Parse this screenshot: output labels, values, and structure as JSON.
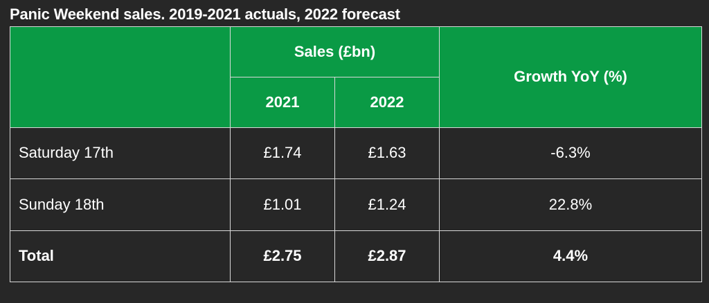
{
  "title": "Panic Weekend sales. 2019-2021 actuals, 2022 forecast",
  "colors": {
    "header_green": "#0a9a45",
    "background": "#272727",
    "border": "#d9d9d9"
  },
  "header": {
    "sales_group": "Sales (£bn)",
    "col_2021": "2021",
    "col_2022": "2022",
    "growth": "Growth YoY (%)"
  },
  "chart_data": {
    "type": "table",
    "title": "Panic Weekend sales. 2019-2021 actuals, 2022 forecast",
    "columns": [
      "",
      "2021",
      "2022",
      "Growth YoY (%)"
    ],
    "column_group": "Sales (£bn)",
    "rows": [
      {
        "label": "Saturday 17th",
        "v2021": "£1.74",
        "v2022": "£1.63",
        "growth": "-6.3%"
      },
      {
        "label": "Sunday 18th",
        "v2021": "£1.01",
        "v2022": "£1.24",
        "growth": "22.8%"
      },
      {
        "label": "Total",
        "v2021": "£2.75",
        "v2022": "£2.87",
        "growth": "4.4%"
      }
    ]
  }
}
